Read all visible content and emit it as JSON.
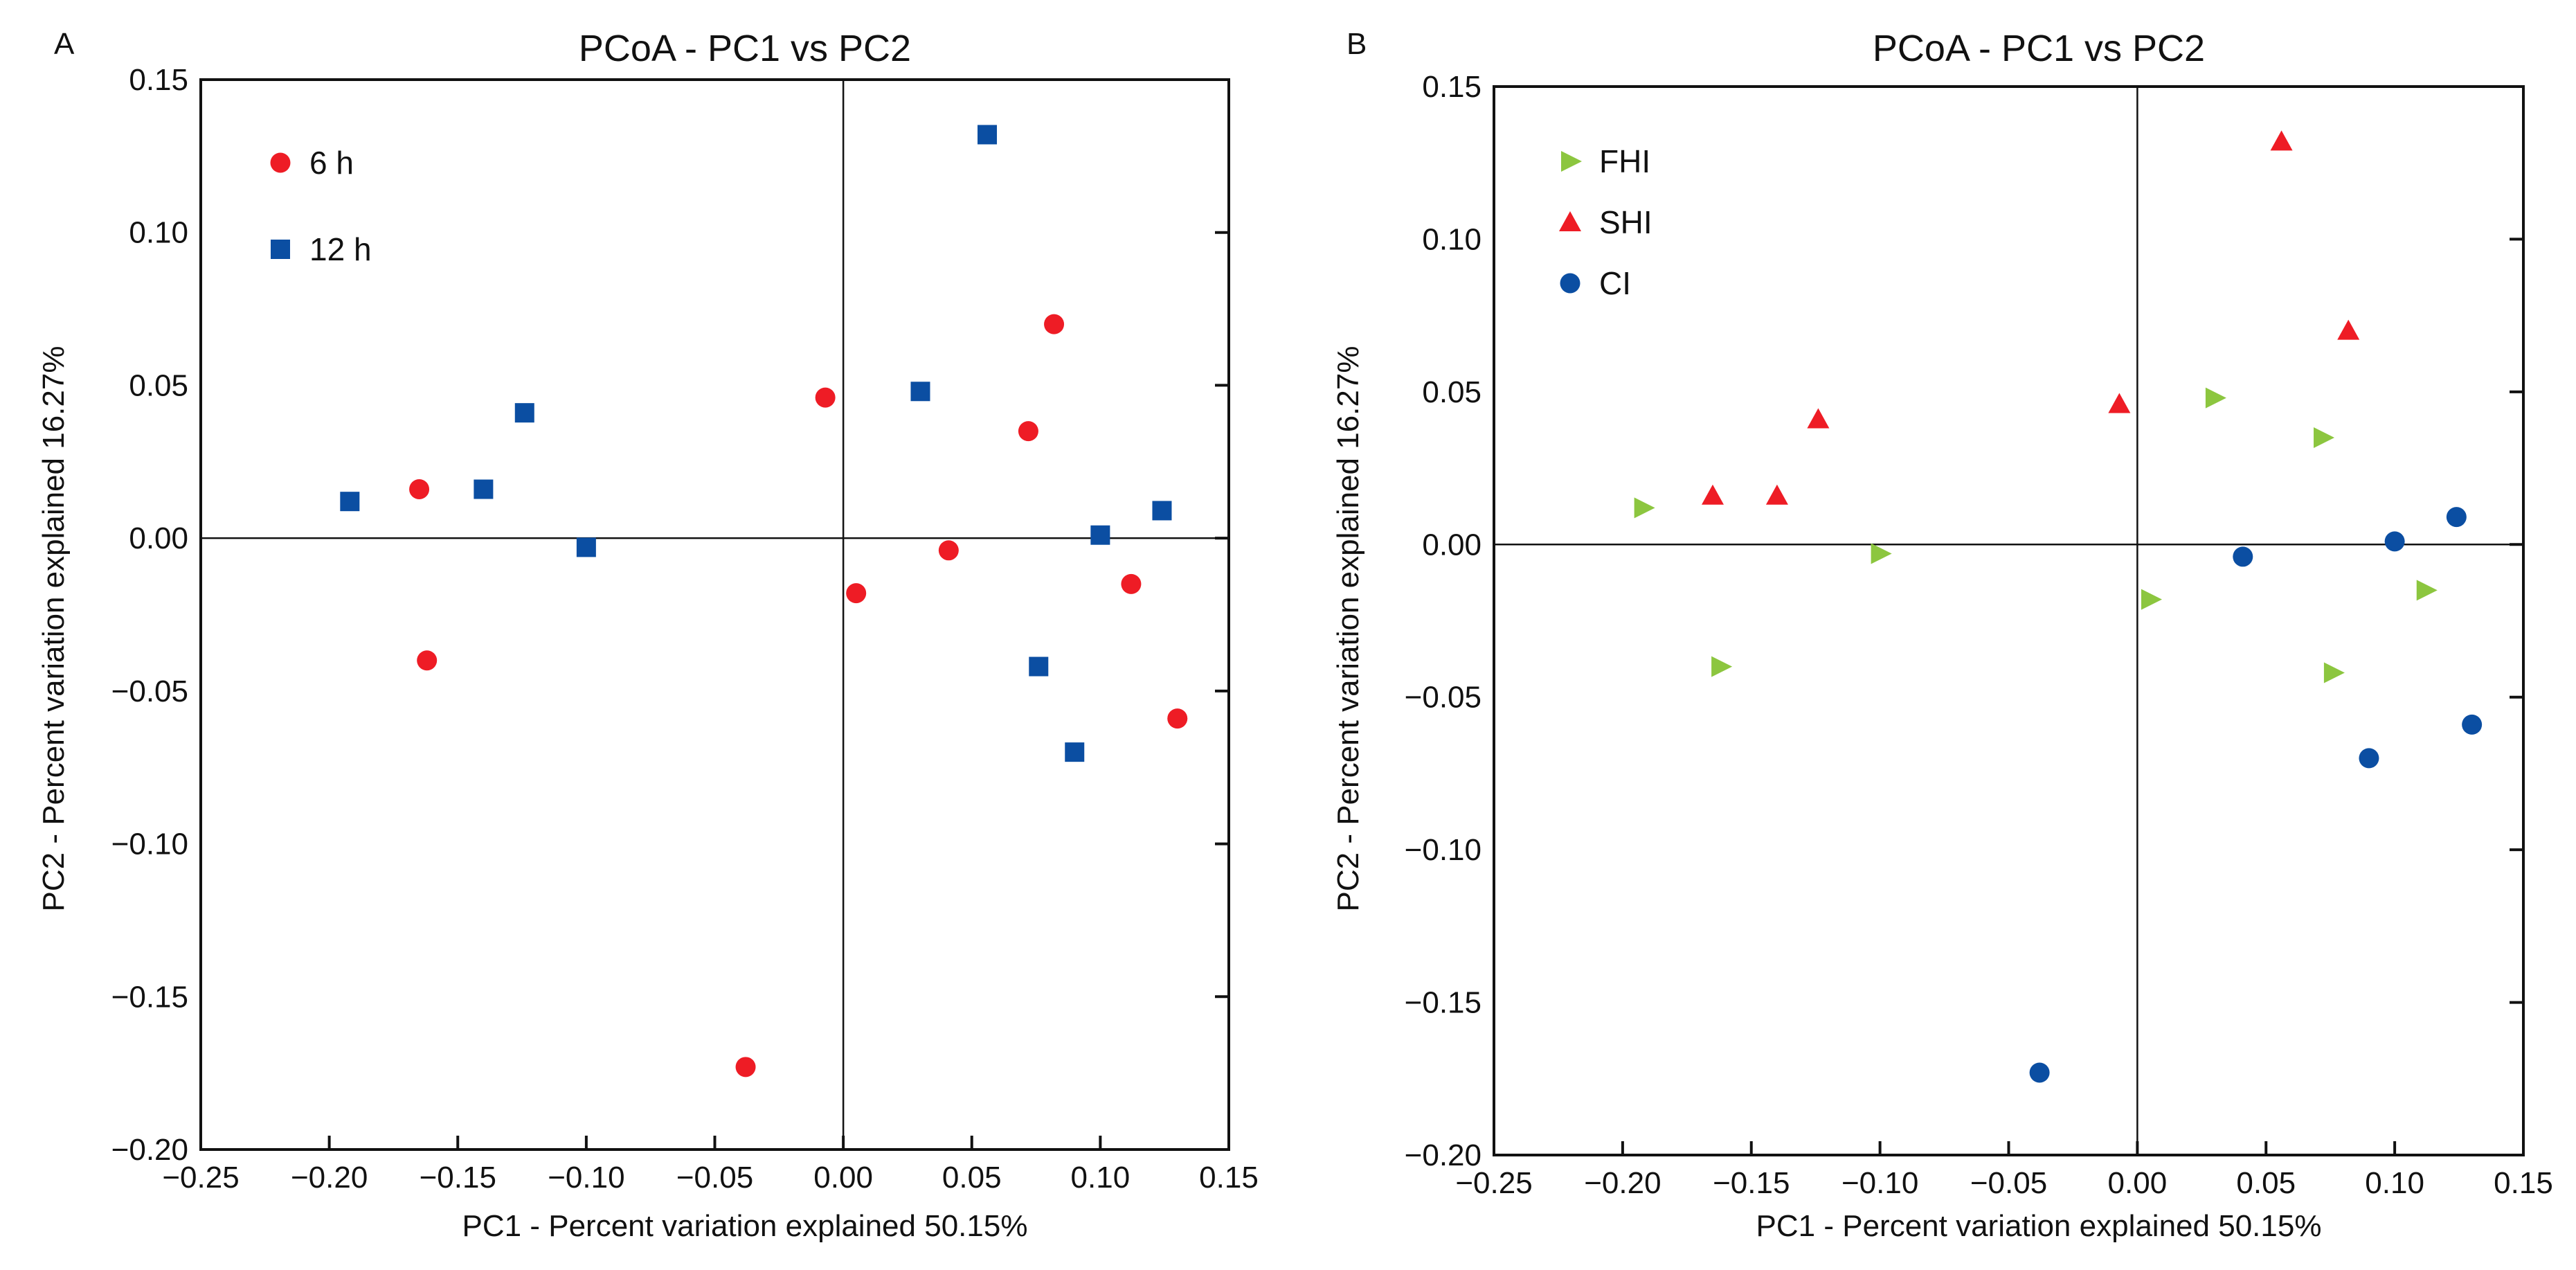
{
  "chart_data": [
    {
      "panel": "A",
      "type": "scatter",
      "title": "PCoA - PC1 vs PC2",
      "xlabel": "PC1 - Percent variation explained 50.15%",
      "ylabel": "PC2 - Percent variation explained 16.27%",
      "xlim": [
        -0.25,
        0.15
      ],
      "ylim": [
        -0.2,
        0.15
      ],
      "xticks": [
        -0.25,
        -0.2,
        -0.15,
        -0.1,
        -0.05,
        0.0,
        0.05,
        0.1,
        0.15
      ],
      "xtick_labels": [
        "−0.25",
        "−0.20",
        "−0.15",
        "−0.10",
        "−0.05",
        "0.00",
        "0.05",
        "0.10",
        "0.15"
      ],
      "yticks": [
        0.15,
        0.1,
        0.05,
        0.0,
        -0.05,
        -0.1,
        -0.15,
        -0.2
      ],
      "ytick_labels": [
        "0.15",
        "0.10",
        "0.05",
        "0.00",
        "−0.05",
        "−0.10",
        "−0.15",
        "−0.20"
      ],
      "zero_lines": true,
      "legend_position": "top-left",
      "series": [
        {
          "name": "6 h",
          "marker": "circle",
          "color": "#ee1c25",
          "points": [
            [
              -0.165,
              0.016
            ],
            [
              -0.162,
              -0.04
            ],
            [
              -0.038,
              -0.173
            ],
            [
              -0.007,
              0.046
            ],
            [
              0.005,
              -0.018
            ],
            [
              0.041,
              -0.004
            ],
            [
              0.072,
              0.035
            ],
            [
              0.082,
              0.07
            ],
            [
              0.112,
              -0.015
            ],
            [
              0.13,
              -0.059
            ]
          ]
        },
        {
          "name": "12 h",
          "marker": "square",
          "color": "#0b4ea2",
          "points": [
            [
              -0.192,
              0.012
            ],
            [
              -0.14,
              0.016
            ],
            [
              -0.124,
              0.041
            ],
            [
              -0.1,
              -0.003
            ],
            [
              0.03,
              0.048
            ],
            [
              0.056,
              0.132
            ],
            [
              0.076,
              -0.042
            ],
            [
              0.09,
              -0.07
            ],
            [
              0.1,
              0.001
            ],
            [
              0.124,
              0.009
            ]
          ]
        }
      ]
    },
    {
      "panel": "B",
      "type": "scatter",
      "title": "PCoA - PC1 vs PC2",
      "xlabel": "PC1 - Percent variation explained 50.15%",
      "ylabel": "PC2 - Percent variation explained 16.27%",
      "xlim": [
        -0.25,
        0.15
      ],
      "ylim": [
        -0.2,
        0.15
      ],
      "xticks": [
        -0.25,
        -0.2,
        -0.15,
        -0.1,
        -0.05,
        0.0,
        0.05,
        0.1,
        0.15
      ],
      "xtick_labels": [
        "−0.25",
        "−0.20",
        "−0.15",
        "−0.10",
        "−0.05",
        "0.00",
        "0.05",
        "0.10",
        "0.15"
      ],
      "yticks": [
        0.15,
        0.1,
        0.05,
        0.0,
        -0.05,
        -0.1,
        -0.15,
        -0.2
      ],
      "ytick_labels": [
        "0.15",
        "0.10",
        "0.05",
        "0.00",
        "−0.05",
        "−0.10",
        "−0.15",
        "−0.20"
      ],
      "zero_lines": true,
      "legend_position": "top-left",
      "series": [
        {
          "name": "FHI",
          "marker": "triangle-right",
          "color": "#8cc63f",
          "points": [
            [
              -0.192,
              0.012
            ],
            [
              -0.162,
              -0.04
            ],
            [
              -0.1,
              -0.003
            ],
            [
              0.005,
              -0.018
            ],
            [
              0.03,
              0.048
            ],
            [
              0.072,
              0.035
            ],
            [
              0.076,
              -0.042
            ],
            [
              0.112,
              -0.015
            ]
          ]
        },
        {
          "name": "SHI",
          "marker": "triangle-up",
          "color": "#ee1c25",
          "points": [
            [
              -0.165,
              0.016
            ],
            [
              -0.14,
              0.016
            ],
            [
              -0.124,
              0.041
            ],
            [
              -0.007,
              0.046
            ],
            [
              0.056,
              0.132
            ],
            [
              0.082,
              0.07
            ]
          ]
        },
        {
          "name": "CI",
          "marker": "circle",
          "color": "#0b4ea2",
          "points": [
            [
              -0.038,
              -0.173
            ],
            [
              0.041,
              -0.004
            ],
            [
              0.09,
              -0.07
            ],
            [
              0.1,
              0.001
            ],
            [
              0.124,
              0.009
            ],
            [
              0.13,
              -0.059
            ]
          ]
        }
      ]
    }
  ]
}
